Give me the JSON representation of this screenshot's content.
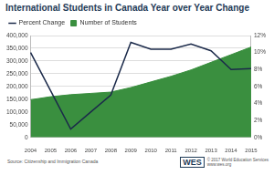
{
  "chart_data": {
    "type": "line",
    "title": "International Students in Canada Year over Year Change",
    "categories": [
      "2004",
      "2005",
      "2006",
      "2007",
      "2008",
      "2009",
      "2010",
      "2011",
      "2012",
      "2013",
      "2014",
      "2015"
    ],
    "series": [
      {
        "name": "Number of Students",
        "type": "area",
        "color": "#3a8f3f",
        "values": [
          148000,
          160000,
          168000,
          173000,
          178000,
          196000,
          218000,
          240000,
          265000,
          295000,
          325000,
          355000
        ]
      },
      {
        "name": "Percent Change",
        "type": "line",
        "color": "#1b2a4a",
        "axis": "y2",
        "values": [
          10,
          5.5,
          1,
          3,
          5,
          11.2,
          10.4,
          10.4,
          11,
          10.2,
          8,
          8.1
        ]
      }
    ],
    "ylim": [
      0,
      400000
    ],
    "yticks": [
      0,
      {
        "value": 50000,
        "label": "50,000"
      },
      {
        "value": 100000,
        "label": "100,000"
      },
      {
        "value": 150000,
        "label": "150,000"
      },
      {
        "value": 200000,
        "label": "200,000"
      },
      {
        "value": 250000,
        "label": "250,000"
      },
      {
        "value": 300000,
        "label": "300,000"
      },
      {
        "value": 350000,
        "label": "350,000"
      },
      {
        "value": 400000,
        "label": "400,000"
      }
    ],
    "y2lim": [
      0,
      12
    ],
    "y2ticks": [
      {
        "value": 0,
        "label": "0%"
      },
      {
        "value": 2,
        "label": "2%"
      },
      {
        "value": 4,
        "label": "4%"
      },
      {
        "value": 6,
        "label": "6%"
      },
      {
        "value": 8,
        "label": "8%"
      },
      {
        "value": 10,
        "label": "10%"
      },
      {
        "value": 12,
        "label": "12%"
      }
    ],
    "grid": true,
    "legend": "top-left",
    "annotations": [
      "Source: Citizenship and Immigration Canada",
      "WES",
      "© 2017 World Education Services",
      "www.wes.org"
    ]
  }
}
